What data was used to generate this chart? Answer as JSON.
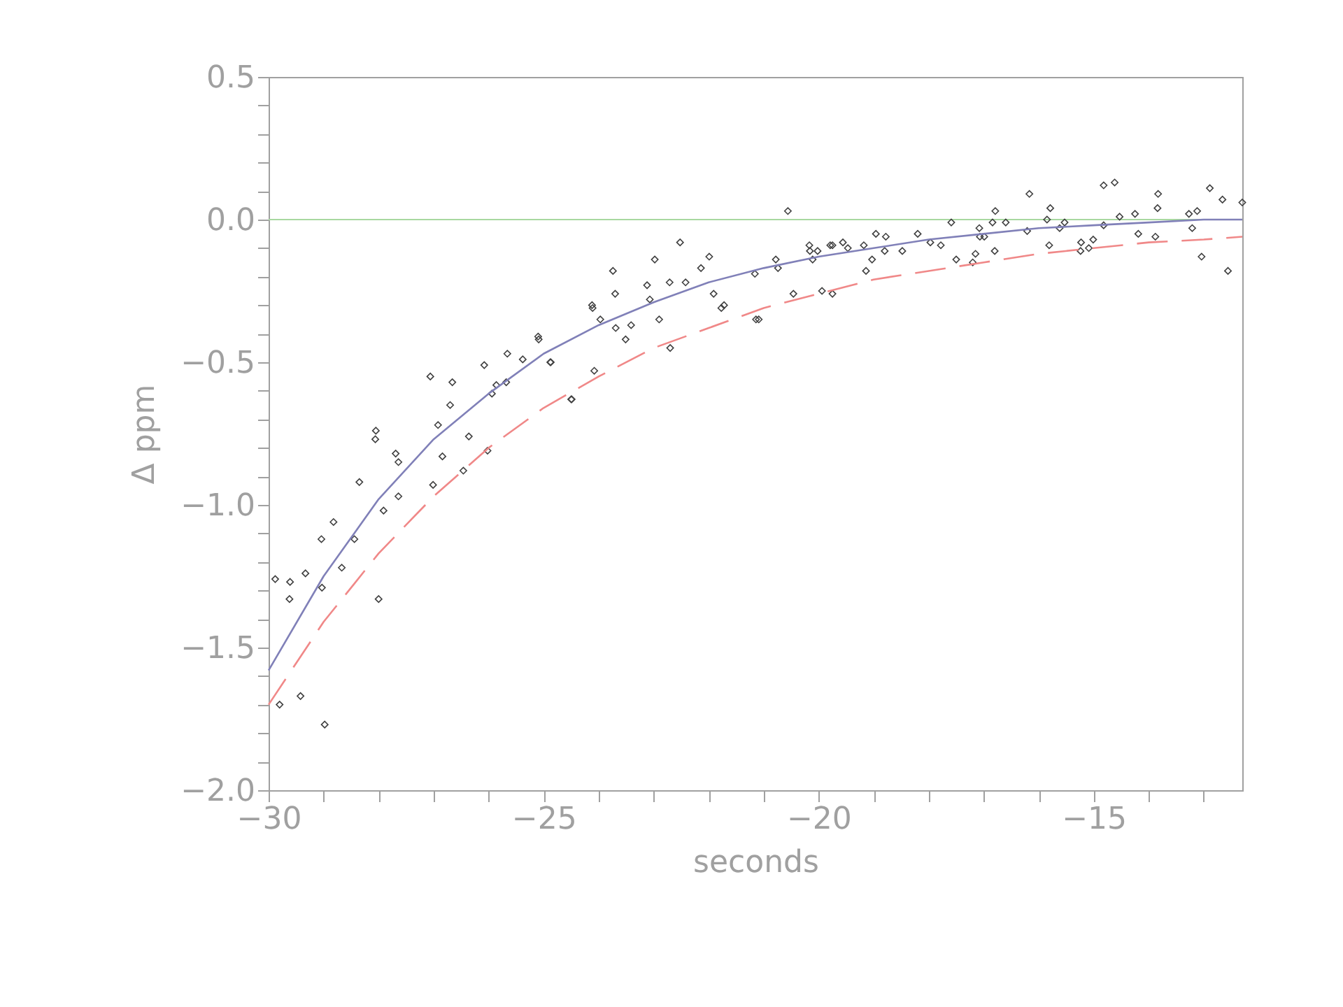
{
  "chart_data": {
    "type": "scatter",
    "xlabel": "seconds",
    "ylabel": "Δ ppm",
    "xlim": [
      -30,
      -12.3
    ],
    "ylim": [
      -2.0,
      0.5
    ],
    "xticks": [
      {
        "value": -30,
        "label": "−30"
      },
      {
        "value": -29,
        "label": null
      },
      {
        "value": -28,
        "label": null
      },
      {
        "value": -27,
        "label": null
      },
      {
        "value": -26,
        "label": null
      },
      {
        "value": -25,
        "label": "−25"
      },
      {
        "value": -24,
        "label": null
      },
      {
        "value": -23,
        "label": null
      },
      {
        "value": -22,
        "label": null
      },
      {
        "value": -21,
        "label": null
      },
      {
        "value": -20,
        "label": "−20"
      },
      {
        "value": -19,
        "label": null
      },
      {
        "value": -18,
        "label": null
      },
      {
        "value": -17,
        "label": null
      },
      {
        "value": -16,
        "label": null
      },
      {
        "value": -15,
        "label": "−15"
      },
      {
        "value": -14,
        "label": null
      },
      {
        "value": -13,
        "label": null
      }
    ],
    "yticks": [
      {
        "value": -2.0,
        "label": "−2.0"
      },
      {
        "value": -1.9,
        "label": null
      },
      {
        "value": -1.8,
        "label": null
      },
      {
        "value": -1.7,
        "label": null
      },
      {
        "value": -1.6,
        "label": null
      },
      {
        "value": -1.5,
        "label": "−1.5"
      },
      {
        "value": -1.4,
        "label": null
      },
      {
        "value": -1.3,
        "label": null
      },
      {
        "value": -1.2,
        "label": null
      },
      {
        "value": -1.1,
        "label": null
      },
      {
        "value": -1.0,
        "label": "−1.0"
      },
      {
        "value": -0.9,
        "label": null
      },
      {
        "value": -0.8,
        "label": null
      },
      {
        "value": -0.7,
        "label": null
      },
      {
        "value": -0.6,
        "label": null
      },
      {
        "value": -0.5,
        "label": "−0.5"
      },
      {
        "value": -0.4,
        "label": null
      },
      {
        "value": -0.3,
        "label": null
      },
      {
        "value": -0.2,
        "label": null
      },
      {
        "value": -0.1,
        "label": null
      },
      {
        "value": 0.0,
        "label": "0.0"
      },
      {
        "value": 0.1,
        "label": null
      },
      {
        "value": 0.2,
        "label": null
      },
      {
        "value": 0.3,
        "label": null
      },
      {
        "value": 0.4,
        "label": null
      },
      {
        "value": 0.5,
        "label": "0.5"
      }
    ],
    "grid": false,
    "ref_lines": [
      {
        "axis": "y",
        "value": 0,
        "color": "#a8d8a0",
        "line_style": "solid"
      }
    ],
    "series": [
      {
        "color": "#404040",
        "marker": "diamond",
        "x": [
          -29.88,
          -29.61,
          -29.62,
          -29.33,
          -29.04,
          -29.03,
          -28.82,
          -28.67,
          -28.44,
          -28.35,
          -28.05,
          -28.06,
          -28.0,
          -27.91,
          -27.69,
          -27.64,
          -27.64,
          -27.01,
          -27.06,
          -26.66,
          -26.7,
          -26.92,
          -26.84,
          -26.36,
          -26.46,
          -26.02,
          -26.08,
          -25.94,
          -25.86,
          -25.66,
          -25.68,
          -25.38,
          -25.09,
          -24.87,
          -24.5,
          -24.08,
          -29.8,
          -29.42,
          -28.98,
          -25.1,
          -24.88,
          -24.49,
          -24.12,
          -24.11,
          -23.97,
          -23.74,
          -23.7,
          -23.69,
          -23.51,
          -23.41,
          -23.12,
          -23.07,
          -22.98,
          -22.9,
          -22.71,
          -22.7,
          -22.52,
          -22.42,
          -22.14,
          -21.99,
          -21.91,
          -21.77,
          -21.72,
          -21.16,
          -21.14,
          -21.09,
          -20.78,
          -20.74,
          -20.56,
          -20.46,
          -20.17,
          -20.16,
          -20.11,
          -20.02,
          -19.94,
          -19.79,
          -19.75,
          -19.75,
          -19.56,
          -19.47,
          -19.18,
          -19.14,
          -19.03,
          -18.96,
          -18.8,
          -18.78,
          -18.48,
          -18.2,
          -17.97,
          -17.78,
          -17.59,
          -17.5,
          -17.2,
          -17.15,
          -17.08,
          -17.07,
          -16.99,
          -16.84,
          -16.8,
          -16.79,
          -16.6,
          -16.21,
          -16.17,
          -15.85,
          -15.81,
          -15.79,
          -15.62,
          -15.53,
          -15.24,
          -15.23,
          -15.09,
          -15.01,
          -14.82,
          -14.82,
          -14.62,
          -14.53,
          -14.25,
          -14.19,
          -13.88,
          -13.84,
          -13.83,
          -13.27,
          -13.21,
          -13.12,
          -13.04,
          -12.89,
          -12.66,
          -12.56,
          -12.3
        ],
        "values": [
          -1.26,
          -1.27,
          -1.33,
          -1.24,
          -1.12,
          -1.29,
          -1.06,
          -1.22,
          -1.12,
          -0.92,
          -0.74,
          -0.77,
          -1.33,
          -1.02,
          -0.82,
          -0.85,
          -0.97,
          -0.93,
          -0.55,
          -0.57,
          -0.65,
          -0.72,
          -0.83,
          -0.76,
          -0.88,
          -0.81,
          -0.51,
          -0.61,
          -0.58,
          -0.47,
          -0.57,
          -0.49,
          -0.42,
          -0.5,
          -0.63,
          -0.53,
          -1.7,
          -1.67,
          -1.77,
          -0.41,
          -0.5,
          -0.63,
          -0.3,
          -0.31,
          -0.35,
          -0.18,
          -0.26,
          -0.38,
          -0.42,
          -0.37,
          -0.23,
          -0.28,
          -0.14,
          -0.35,
          -0.22,
          -0.45,
          -0.08,
          -0.22,
          -0.17,
          -0.13,
          -0.26,
          -0.31,
          -0.3,
          -0.19,
          -0.35,
          -0.35,
          -0.14,
          -0.17,
          0.03,
          -0.26,
          -0.09,
          -0.11,
          -0.14,
          -0.11,
          -0.25,
          -0.09,
          -0.09,
          -0.26,
          -0.08,
          -0.1,
          -0.09,
          -0.18,
          -0.14,
          -0.05,
          -0.11,
          -0.06,
          -0.11,
          -0.05,
          -0.08,
          -0.09,
          -0.01,
          -0.14,
          -0.15,
          -0.12,
          -0.03,
          -0.06,
          -0.06,
          -0.01,
          -0.11,
          0.03,
          -0.01,
          -0.04,
          0.09,
          0.0,
          -0.09,
          0.04,
          -0.03,
          -0.01,
          -0.11,
          -0.08,
          -0.1,
          -0.07,
          0.12,
          -0.02,
          0.13,
          0.01,
          0.02,
          -0.05,
          -0.06,
          0.04,
          0.09,
          0.02,
          -0.03,
          0.03,
          -0.13,
          0.11,
          0.07,
          -0.18,
          0.06
        ]
      },
      {
        "type": "line",
        "color": "#8080b8",
        "line_style": "solid",
        "marker": "none",
        "x": [
          -30,
          -29,
          -28,
          -27,
          -26,
          -25,
          -24,
          -23,
          -22,
          -21,
          -20,
          -19,
          -18,
          -17,
          -16,
          -15,
          -14,
          -13,
          -12.3
        ],
        "values": [
          -1.58,
          -1.25,
          -0.98,
          -0.77,
          -0.61,
          -0.47,
          -0.37,
          -0.29,
          -0.22,
          -0.17,
          -0.13,
          -0.1,
          -0.07,
          -0.05,
          -0.03,
          -0.02,
          -0.01,
          0.0,
          0.0
        ]
      },
      {
        "type": "line",
        "color": "#f08888",
        "line_style": "dashed",
        "marker": "none",
        "x": [
          -30,
          -29,
          -28,
          -27,
          -26,
          -25,
          -24,
          -23,
          -22,
          -21,
          -20,
          -19,
          -18,
          -17,
          -16,
          -15,
          -14,
          -13,
          -12.3
        ],
        "values": [
          -1.7,
          -1.41,
          -1.17,
          -0.97,
          -0.8,
          -0.66,
          -0.55,
          -0.45,
          -0.38,
          -0.31,
          -0.26,
          -0.21,
          -0.18,
          -0.15,
          -0.12,
          -0.1,
          -0.08,
          -0.07,
          -0.06
        ]
      }
    ]
  }
}
